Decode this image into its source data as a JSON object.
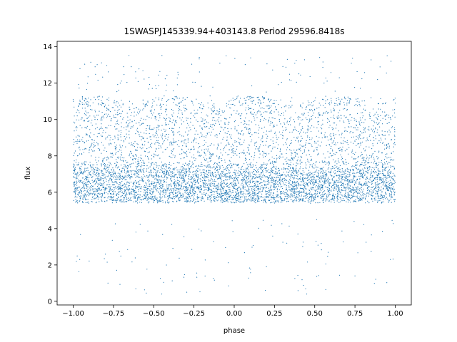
{
  "chart_data": {
    "type": "scatter",
    "title": "1SWASPJ145339.94+403143.8 Period 29596.8418s",
    "xlabel": "phase",
    "ylabel": "flux",
    "xlim": [
      -1.1,
      1.1
    ],
    "ylim": [
      -0.2,
      14.3
    ],
    "x_ticks": [
      -1.0,
      -0.75,
      -0.5,
      -0.25,
      0.0,
      0.25,
      0.5,
      0.75,
      1.0
    ],
    "x_tick_labels": [
      "−1.00",
      "−0.75",
      "−0.50",
      "−0.25",
      "0.00",
      "0.25",
      "0.50",
      "0.75",
      "1.00"
    ],
    "y_ticks": [
      0,
      2,
      4,
      6,
      8,
      10,
      12,
      14
    ],
    "y_tick_labels": [
      "0",
      "2",
      "4",
      "6",
      "8",
      "10",
      "12",
      "14"
    ],
    "grid": false,
    "legend": "none",
    "series": [
      {
        "color": "#1f77b4",
        "marker_size": 0.6,
        "phase_range": [
          -1.0,
          1.0
        ],
        "approx_points": 20000,
        "flux_band_main": [
          5.5,
          7.8
        ],
        "flux_band_upper": [
          7.8,
          11.2
        ],
        "flux_band_peak_density_levels": [
          6.0,
          7.0
        ],
        "flux_outliers_low": [
          0.4,
          4.5
        ],
        "flux_outliers_high": [
          11.5,
          13.6
        ],
        "sample_points": [
          [
            -1.0,
            11.1
          ],
          [
            -0.98,
            10.4
          ],
          [
            -0.95,
            6.0
          ],
          [
            -0.9,
            7.1
          ],
          [
            -0.85,
            5.8
          ],
          [
            -0.8,
            10.8
          ],
          [
            -0.75,
            6.4
          ],
          [
            -0.7,
            9.6
          ],
          [
            -0.65,
            11.0
          ],
          [
            -0.6,
            7.2
          ],
          [
            -0.55,
            10.8
          ],
          [
            -0.5,
            7.3
          ],
          [
            -0.45,
            6.9
          ],
          [
            -0.4,
            8.6
          ],
          [
            -0.35,
            6.2
          ],
          [
            -0.3,
            10.6
          ],
          [
            -0.25,
            6.1
          ],
          [
            -0.2,
            9.5
          ],
          [
            -0.15,
            11.3
          ],
          [
            -0.1,
            7.0
          ],
          [
            -0.05,
            13.5
          ],
          [
            0.0,
            6.5
          ],
          [
            0.05,
            5.9
          ],
          [
            0.1,
            10.4
          ],
          [
            0.15,
            6.3
          ],
          [
            0.2,
            8.8
          ],
          [
            0.25,
            6.8
          ],
          [
            0.3,
            9.6
          ],
          [
            0.35,
            11.0
          ],
          [
            0.4,
            7.2
          ],
          [
            0.45,
            10.7
          ],
          [
            0.5,
            7.1
          ],
          [
            0.55,
            6.9
          ],
          [
            0.6,
            8.4
          ],
          [
            0.65,
            6.2
          ],
          [
            0.7,
            10.5
          ],
          [
            0.75,
            6.1
          ],
          [
            0.8,
            10.2
          ],
          [
            0.85,
            11.2
          ],
          [
            0.9,
            7.0
          ],
          [
            0.95,
            13.5
          ],
          [
            1.0,
            10.9
          ],
          [
            -0.45,
            0.4
          ],
          [
            0.45,
            0.4
          ],
          [
            -0.96,
            2.3
          ],
          [
            0.97,
            2.3
          ],
          [
            0.2,
            1.9
          ],
          [
            -0.8,
            2.6
          ],
          [
            0.75,
            1.4
          ],
          [
            -0.35,
            12.6
          ]
        ]
      }
    ]
  }
}
